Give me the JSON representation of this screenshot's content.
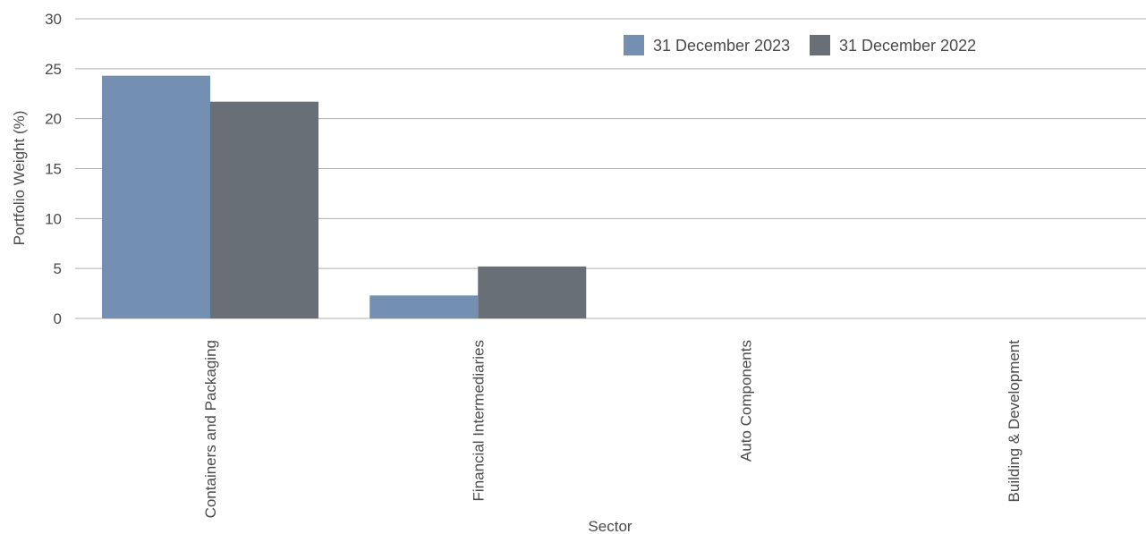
{
  "chart_data": {
    "type": "bar",
    "title": "",
    "xlabel": "Sector",
    "ylabel": "Portfolio Weight (%)",
    "ylim": [
      0,
      30
    ],
    "yticks": [
      0,
      5,
      10,
      15,
      20,
      25,
      30
    ],
    "grid": true,
    "legend_position": "top-right",
    "categories": [
      "Containers and Packaging",
      "Financial Intermediaries",
      "Auto Components",
      "Building & Development"
    ],
    "series": [
      {
        "name": "31 December 2023",
        "color": "#7390b3",
        "values": [
          24.3,
          2.3,
          0,
          0
        ]
      },
      {
        "name": "31 December 2022",
        "color": "#686f77",
        "values": [
          21.7,
          5.2,
          0,
          0
        ]
      }
    ],
    "gridline_color": "#b0b0b0"
  }
}
